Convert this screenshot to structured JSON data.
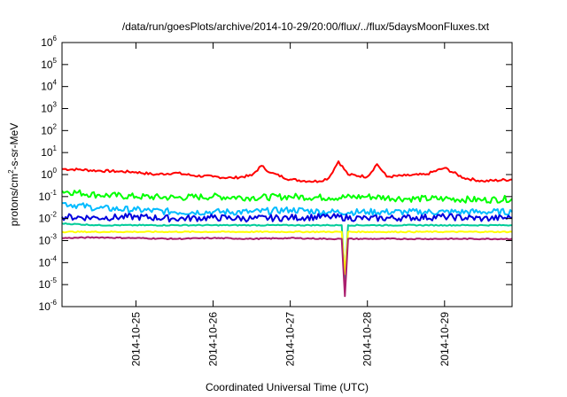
{
  "chart_data": {
    "type": "line",
    "title": "/data/run/goesPlots/archive/2014-10-29/20:00/flux/../flux/5daysMoonFluxes.txt",
    "xlabel": "Coordinated Universal Time (UTC)",
    "ylabel": {
      "prefix": "protons/cm",
      "sup": "2",
      "suffix": "-s-sr-MeV"
    },
    "x_ticks": [
      "2014-10-25",
      "2014-10-26",
      "2014-10-27",
      "2014-10-28",
      "2014-10-29"
    ],
    "xlim": [
      "2014-10-24T01:00",
      "2014-10-29T21:00"
    ],
    "yscale": "log",
    "ylim": [
      1e-06,
      1000000.0
    ],
    "y_ticks": [
      {
        "base": "10",
        "exp": "-6"
      },
      {
        "base": "10",
        "exp": "-5"
      },
      {
        "base": "10",
        "exp": "-4"
      },
      {
        "base": "10",
        "exp": "-3"
      },
      {
        "base": "10",
        "exp": "-2"
      },
      {
        "base": "10",
        "exp": "-1"
      },
      {
        "base": "10",
        "exp": "0"
      },
      {
        "base": "10",
        "exp": "1"
      },
      {
        "base": "10",
        "exp": "2"
      },
      {
        "base": "10",
        "exp": "3"
      },
      {
        "base": "10",
        "exp": "4"
      },
      {
        "base": "10",
        "exp": "5"
      },
      {
        "base": "10",
        "exp": "6"
      }
    ],
    "grid": false,
    "legend": "none",
    "series": [
      {
        "color": "#ff0000",
        "x": [
          "2014-10-24T01:00",
          "2014-10-24T06:00",
          "2014-10-24T12:00",
          "2014-10-24T18:00",
          "2014-10-25T00:00",
          "2014-10-25T06:00",
          "2014-10-25T12:00",
          "2014-10-25T18:00",
          "2014-10-26T00:00",
          "2014-10-26T06:00",
          "2014-10-26T12:00",
          "2014-10-26T15:00",
          "2014-10-26T18:00",
          "2014-10-27T00:00",
          "2014-10-27T06:00",
          "2014-10-27T09:00",
          "2014-10-27T12:00",
          "2014-10-27T15:00",
          "2014-10-27T18:00",
          "2014-10-28T00:00",
          "2014-10-28T03:00",
          "2014-10-28T06:00",
          "2014-10-28T12:00",
          "2014-10-28T18:00",
          "2014-10-29T00:00",
          "2014-10-29T06:00",
          "2014-10-29T12:00",
          "2014-10-29T21:00"
        ],
        "values": [
          1.8,
          1.7,
          1.5,
          1.4,
          1.3,
          1.0,
          1.2,
          0.9,
          0.8,
          0.7,
          0.9,
          2.5,
          1.2,
          0.6,
          0.5,
          0.5,
          0.7,
          4.0,
          1.0,
          0.8,
          3.0,
          0.8,
          0.9,
          1.0,
          2.0,
          0.7,
          0.5,
          0.6
        ]
      },
      {
        "color": "#00ff00",
        "x": [
          "2014-10-24T01:00",
          "2014-10-24T12:00",
          "2014-10-25T00:00",
          "2014-10-25T12:00",
          "2014-10-26T00:00",
          "2014-10-26T12:00",
          "2014-10-27T00:00",
          "2014-10-27T12:00",
          "2014-10-28T00:00",
          "2014-10-28T12:00",
          "2014-10-29T00:00",
          "2014-10-29T12:00",
          "2014-10-29T21:00"
        ],
        "values": [
          0.18,
          0.12,
          0.1,
          0.09,
          0.1,
          0.09,
          0.1,
          0.09,
          0.1,
          0.08,
          0.08,
          0.07,
          0.08
        ]
      },
      {
        "color": "#00bbff",
        "x": [
          "2014-10-24T01:00",
          "2014-10-24T12:00",
          "2014-10-25T00:00",
          "2014-10-25T12:00",
          "2014-10-26T00:00",
          "2014-10-26T12:00",
          "2014-10-27T00:00",
          "2014-10-27T12:00",
          "2014-10-28T00:00",
          "2014-10-28T12:00",
          "2014-10-29T00:00",
          "2014-10-29T12:00",
          "2014-10-29T21:00"
        ],
        "values": [
          0.05,
          0.03,
          0.025,
          0.02,
          0.02,
          0.02,
          0.025,
          0.02,
          0.02,
          0.02,
          0.02,
          0.02,
          0.02
        ]
      },
      {
        "color": "#0000dd",
        "x": [
          "2014-10-24T01:00",
          "2014-10-24T12:00",
          "2014-10-25T00:00",
          "2014-10-25T12:00",
          "2014-10-26T00:00",
          "2014-10-26T12:00",
          "2014-10-27T00:00",
          "2014-10-27T12:00",
          "2014-10-28T00:00",
          "2014-10-28T12:00",
          "2014-10-29T00:00",
          "2014-10-29T12:00",
          "2014-10-29T21:00"
        ],
        "values": [
          0.012,
          0.011,
          0.012,
          0.01,
          0.011,
          0.01,
          0.011,
          0.012,
          0.01,
          0.011,
          0.012,
          0.01,
          0.011
        ]
      },
      {
        "color": "#00cc99",
        "x": [
          "2014-10-24T01:00",
          "2014-10-24T12:00",
          "2014-10-25T00:00",
          "2014-10-25T12:00",
          "2014-10-26T00:00",
          "2014-10-26T12:00",
          "2014-10-27T00:00",
          "2014-10-27T12:00",
          "2014-10-27T16:00",
          "2014-10-27T17:00",
          "2014-10-27T18:00",
          "2014-10-28T00:00",
          "2014-10-28T12:00",
          "2014-10-29T00:00",
          "2014-10-29T12:00",
          "2014-10-29T21:00"
        ],
        "values": [
          0.006,
          0.005,
          0.005,
          0.005,
          0.005,
          0.005,
          0.005,
          0.005,
          0.005,
          2e-05,
          0.005,
          0.005,
          0.005,
          0.005,
          0.005,
          0.005
        ]
      },
      {
        "color": "#ffff00",
        "x": [
          "2014-10-24T01:00",
          "2014-10-25T00:00",
          "2014-10-26T00:00",
          "2014-10-27T00:00",
          "2014-10-27T16:00",
          "2014-10-27T17:00",
          "2014-10-27T18:00",
          "2014-10-28T00:00",
          "2014-10-29T00:00",
          "2014-10-29T21:00"
        ],
        "values": [
          0.0025,
          0.0025,
          0.0025,
          0.0025,
          0.0025,
          3e-05,
          0.0025,
          0.0025,
          0.0025,
          0.0025
        ]
      },
      {
        "color": "#aa1e6e",
        "x": [
          "2014-10-24T01:00",
          "2014-10-24T12:00",
          "2014-10-25T00:00",
          "2014-10-25T12:00",
          "2014-10-26T00:00",
          "2014-10-26T12:00",
          "2014-10-27T00:00",
          "2014-10-27T12:00",
          "2014-10-27T16:00",
          "2014-10-27T17:00",
          "2014-10-27T18:00",
          "2014-10-28T00:00",
          "2014-10-28T12:00",
          "2014-10-29T00:00",
          "2014-10-29T12:00",
          "2014-10-29T21:00"
        ],
        "values": [
          0.0013,
          0.0014,
          0.0013,
          0.0012,
          0.0013,
          0.0012,
          0.0013,
          0.0012,
          0.0012,
          3e-06,
          0.0012,
          0.0012,
          0.0012,
          0.0012,
          0.0012,
          0.0012
        ]
      }
    ]
  }
}
